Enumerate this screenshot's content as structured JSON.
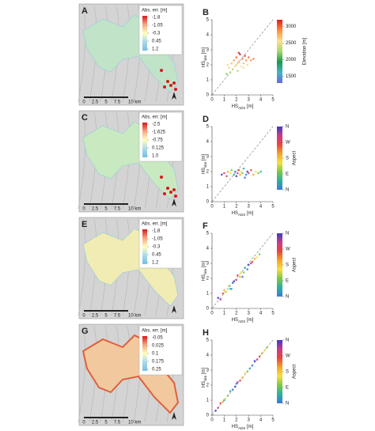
{
  "maps": [
    {
      "letter": "A",
      "legend_title": "Abs. err. [m]",
      "legend_ticks": [
        -1.8,
        -1.05,
        -0.3,
        0.45,
        1.2
      ],
      "colormap": [
        "#d7191c",
        "#f4a582",
        "#ffffbf",
        "#abd9e9",
        "#74c0e0"
      ],
      "scale_labels": [
        "0",
        "2.5",
        "5",
        "7.5",
        "10 km"
      ]
    },
    {
      "letter": "C",
      "legend_title": "Abs. err. [m]",
      "legend_ticks": [
        -2.5,
        -1.625,
        -0.75,
        0.125,
        {
          "value": 1,
          "label": "1.0"
        }
      ],
      "colormap": [
        "#d7191c",
        "#f4a582",
        "#ffffbf",
        "#abd9e9",
        "#74c0e0"
      ],
      "scale_labels": [
        "0",
        "2.5",
        "5",
        "7.5",
        "10 km"
      ]
    },
    {
      "letter": "E",
      "legend_title": "Abs. err. [m]",
      "legend_ticks": [
        -1.8,
        -1.05,
        -0.3,
        0.45,
        1.2
      ],
      "colormap": [
        "#d7191c",
        "#f4a582",
        "#ffffbf",
        "#abd9e9",
        "#74c0e0"
      ],
      "scale_labels": [
        "0",
        "2.5",
        "5",
        "7.5",
        "10 km"
      ]
    },
    {
      "letter": "G",
      "legend_title": "Abs. err. [m]",
      "legend_ticks": [
        -0.05,
        0.025,
        0.1,
        0.175,
        0.25
      ],
      "colormap": [
        "#d7191c",
        "#f4a582",
        "#ffffbf",
        "#abd9e9",
        "#74c0e0"
      ],
      "scale_labels": [
        "0",
        "2.5",
        "5",
        "7.5",
        "10 km"
      ]
    }
  ],
  "chart_data": [
    {
      "type": "scatter",
      "letter": "B",
      "xlabel": {
        "main": "HS",
        "sub": "ADS",
        "unit": " [m]"
      },
      "ylabel": {
        "main": "HS",
        "sub": "sim",
        "unit": " [m]"
      },
      "xlim": [
        0,
        5
      ],
      "ylim": [
        0,
        5
      ],
      "xticks": [
        0,
        1,
        2,
        3,
        4,
        5
      ],
      "yticks": [
        0,
        1,
        2,
        3,
        4,
        5
      ],
      "x": [
        1.2,
        1.4,
        1.5,
        1.6,
        1.7,
        1.8,
        1.9,
        2.0,
        2.0,
        2.1,
        2.2,
        2.3,
        2.4,
        2.5,
        2.6,
        2.7,
        2.8,
        2.9,
        3.0,
        3.2,
        3.4,
        1.3,
        2.2,
        2.6
      ],
      "y": [
        1.4,
        1.8,
        1.5,
        2.1,
        1.7,
        2.3,
        1.9,
        2.0,
        2.5,
        1.6,
        2.2,
        2.7,
        1.9,
        2.4,
        2.1,
        2.6,
        2.3,
        2.0,
        2.5,
        2.3,
        2.4,
        2.0,
        2.8,
        1.8
      ],
      "colorbar": {
        "label": "Elevation [m]",
        "lim": [
          1300,
          3200
        ],
        "ticks": [
          1500,
          2000,
          2500,
          3000
        ],
        "colormap": [
          "#e31a1c",
          "#fd8d3c",
          "#fee08b",
          "#a6d96a",
          "#1a9850",
          "#41b6c4",
          "#6a6ad8"
        ]
      }
    },
    {
      "type": "scatter",
      "letter": "D",
      "xlabel": {
        "main": "HS",
        "sub": "ADS",
        "unit": " [m]"
      },
      "ylabel": {
        "main": "HS",
        "sub": "sim",
        "unit": " [m]"
      },
      "xlim": [
        0,
        5
      ],
      "ylim": [
        0,
        5
      ],
      "xticks": [
        0,
        1,
        2,
        3,
        4,
        5
      ],
      "yticks": [
        0,
        1,
        2,
        3,
        4,
        5
      ],
      "x": [
        0.8,
        1.0,
        1.2,
        1.3,
        1.5,
        1.6,
        1.8,
        1.9,
        2.0,
        2.1,
        2.2,
        2.3,
        2.4,
        2.5,
        2.6,
        2.8,
        2.9,
        3.0,
        3.2,
        3.4,
        3.6,
        3.8,
        4.0,
        2.7
      ],
      "y": [
        1.8,
        1.9,
        1.7,
        2.0,
        1.9,
        2.1,
        1.8,
        2.0,
        1.7,
        1.9,
        2.1,
        1.8,
        2.0,
        1.9,
        2.2,
        1.8,
        2.0,
        1.9,
        2.1,
        1.8,
        2.0,
        1.9,
        2.0,
        1.6
      ],
      "colorbar": {
        "label": "Aspect",
        "lim": [
          0,
          360
        ],
        "ticks": [
          {
            "value": 360,
            "label": "N"
          },
          {
            "value": 270,
            "label": "W"
          },
          {
            "value": 180,
            "label": "S"
          },
          {
            "value": 90,
            "label": "E"
          },
          {
            "value": 0,
            "label": "N"
          }
        ],
        "colormap": [
          "#3b3bc8",
          "#c83b8a",
          "#e8453c",
          "#f5a623",
          "#f7e03c",
          "#7ac943",
          "#2ab0a0",
          "#3b7bd8"
        ]
      }
    },
    {
      "type": "scatter",
      "letter": "F",
      "xlabel": {
        "main": "HS",
        "sub": "ADS",
        "unit": " [m]"
      },
      "ylabel": {
        "main": "HS",
        "sub": "sim",
        "unit": " [m]"
      },
      "xlim": [
        0,
        5
      ],
      "ylim": [
        0,
        5
      ],
      "xticks": [
        0,
        1,
        2,
        3,
        4,
        5
      ],
      "yticks": [
        0,
        1,
        2,
        3,
        4,
        5
      ],
      "x": [
        0.5,
        0.7,
        0.9,
        1.0,
        1.2,
        1.4,
        1.5,
        1.7,
        1.8,
        2.0,
        2.1,
        2.3,
        2.4,
        2.6,
        2.7,
        2.9,
        3.0,
        3.2,
        3.3,
        3.5,
        3.7,
        3.9,
        1.6,
        2.5
      ],
      "y": [
        0.7,
        0.6,
        1.0,
        1.2,
        1.1,
        1.5,
        1.3,
        1.7,
        1.8,
        1.9,
        2.2,
        2.1,
        2.4,
        2.4,
        2.7,
        2.6,
        2.9,
        3.0,
        3.1,
        3.3,
        3.4,
        3.6,
        1.3,
        2.1
      ],
      "colorbar": {
        "label": "Aspect",
        "lim": [
          0,
          360
        ],
        "ticks": [
          {
            "value": 360,
            "label": "N"
          },
          {
            "value": 270,
            "label": "W"
          },
          {
            "value": 180,
            "label": "S"
          },
          {
            "value": 90,
            "label": "E"
          },
          {
            "value": 0,
            "label": "N"
          }
        ],
        "colormap": [
          "#3b3bc8",
          "#c83b8a",
          "#e8453c",
          "#f5a623",
          "#f7e03c",
          "#7ac943",
          "#2ab0a0",
          "#3b7bd8"
        ]
      }
    },
    {
      "type": "scatter",
      "letter": "H",
      "xlabel": {
        "main": "HS",
        "sub": "ADS",
        "unit": " [m]"
      },
      "ylabel": {
        "main": "HS",
        "sub": "sim",
        "unit": " [m]"
      },
      "xlim": [
        0,
        5
      ],
      "ylim": [
        0,
        5
      ],
      "xticks": [
        0,
        1,
        2,
        3,
        4,
        5
      ],
      "yticks": [
        0,
        1,
        2,
        3,
        4,
        5
      ],
      "x": [
        0.3,
        0.5,
        0.7,
        0.9,
        1.1,
        1.3,
        1.5,
        1.7,
        1.9,
        2.1,
        2.3,
        2.5,
        2.7,
        2.9,
        3.1,
        3.3,
        3.5,
        3.7,
        3.9,
        4.1,
        4.3,
        4.5,
        1.0,
        2.0
      ],
      "y": [
        0.3,
        0.5,
        0.8,
        0.9,
        1.1,
        1.3,
        1.6,
        1.7,
        1.9,
        2.2,
        2.3,
        2.5,
        2.8,
        2.9,
        3.1,
        3.3,
        3.6,
        3.7,
        3.9,
        4.1,
        4.3,
        4.5,
        1.0,
        2.1
      ],
      "colorbar": {
        "label": "Aspect",
        "lim": [
          0,
          360
        ],
        "ticks": [
          {
            "value": 360,
            "label": "N"
          },
          {
            "value": 270,
            "label": "W"
          },
          {
            "value": 180,
            "label": "S"
          },
          {
            "value": 90,
            "label": "E"
          },
          {
            "value": 0,
            "label": "N"
          }
        ],
        "colormap": [
          "#3b3bc8",
          "#c83b8a",
          "#e8453c",
          "#f5a623",
          "#f7e03c",
          "#7ac943",
          "#2ab0a0",
          "#3b7bd8"
        ]
      }
    }
  ]
}
